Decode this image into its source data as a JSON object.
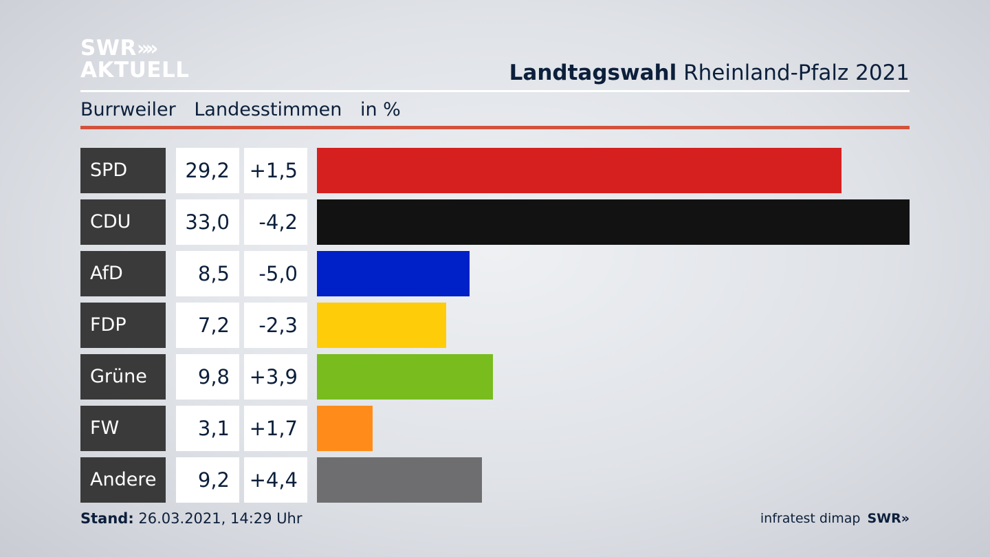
{
  "logo": {
    "line1": "SWR",
    "chevrons": "»",
    "line2": "AKTUELL"
  },
  "header": {
    "title_bold": "Landtagswahl",
    "title_rest": "Rheinland-Pfalz 2021"
  },
  "subheader": {
    "place": "Burrweiler",
    "measure": "Landesstimmen",
    "unit": "in %"
  },
  "colors": {
    "accent_rule": "#d4523b",
    "label_bg": "#3a3a3a"
  },
  "chart_data": {
    "type": "bar",
    "orientation": "horizontal",
    "xlim": [
      0,
      33.0
    ],
    "rows": [
      {
        "party": "SPD",
        "value": 29.2,
        "value_label": "29,2",
        "change_label": "+1,5",
        "color": "#d62020"
      },
      {
        "party": "CDU",
        "value": 33.0,
        "value_label": "33,0",
        "change_label": "-4,2",
        "color": "#121212"
      },
      {
        "party": "AfD",
        "value": 8.5,
        "value_label": "8,5",
        "change_label": "-5,0",
        "color": "#0020c8"
      },
      {
        "party": "FDP",
        "value": 7.2,
        "value_label": "7,2",
        "change_label": "-2,3",
        "color": "#ffcc0a"
      },
      {
        "party": "Grüne",
        "value": 9.8,
        "value_label": "9,8",
        "change_label": "+3,9",
        "color": "#78bc1e"
      },
      {
        "party": "FW",
        "value": 3.1,
        "value_label": "3,1",
        "change_label": "+1,7",
        "color": "#ff8c1a"
      },
      {
        "party": "Andere",
        "value": 9.2,
        "value_label": "9,2",
        "change_label": "+4,4",
        "color": "#6e6e70"
      }
    ]
  },
  "footer": {
    "stand_label": "Stand:",
    "stand_value": "26.03.2021, 14:29 Uhr",
    "source": "infratest dimap",
    "brand": "SWR»"
  }
}
